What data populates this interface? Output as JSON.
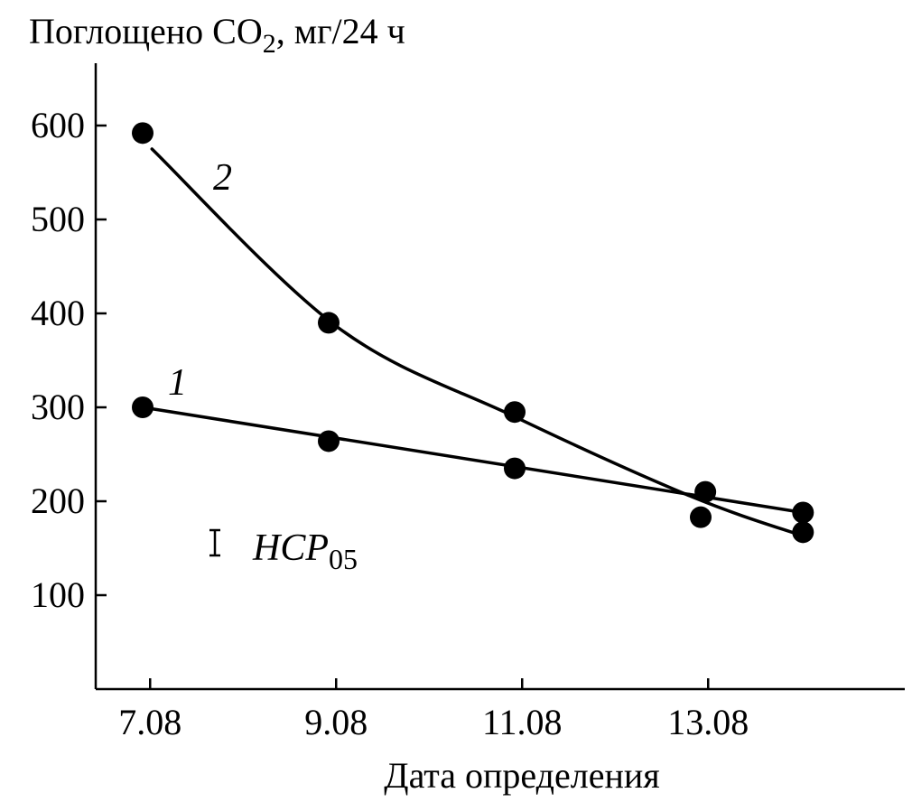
{
  "chart_data": {
    "type": "line",
    "ylabel_main": "Поглощено CO",
    "ylabel_sub": "2",
    "ylabel_rest": ", мг/24 ч",
    "xlabel": "Дата определения",
    "x_ticks": [
      "7.08",
      "9.08",
      "11.08",
      "13.08"
    ],
    "y_ticks": [
      100,
      200,
      300,
      400,
      500,
      600
    ],
    "ylim": [
      0,
      660
    ],
    "series": [
      {
        "name": "1",
        "points": [
          {
            "x": 7,
            "y": 300
          },
          {
            "x": 9,
            "y": 264
          },
          {
            "x": 11,
            "y": 235
          },
          {
            "x": 13,
            "y": 183
          },
          {
            "x": 14.1,
            "y": 188
          }
        ],
        "fit": "linear",
        "fit_start": [
          7,
          300
        ],
        "fit_end": [
          14.1,
          188
        ]
      },
      {
        "name": "2",
        "points": [
          {
            "x": 7,
            "y": 592
          },
          {
            "x": 9,
            "y": 390
          },
          {
            "x": 11,
            "y": 295
          },
          {
            "x": 13.05,
            "y": 210
          },
          {
            "x": 14.1,
            "y": 167
          }
        ],
        "fit": "curve",
        "fit_start": [
          7.1,
          575
        ],
        "fit_end": [
          14.1,
          163
        ]
      }
    ],
    "annotation": {
      "text": "HCP",
      "sub": "05"
    }
  }
}
